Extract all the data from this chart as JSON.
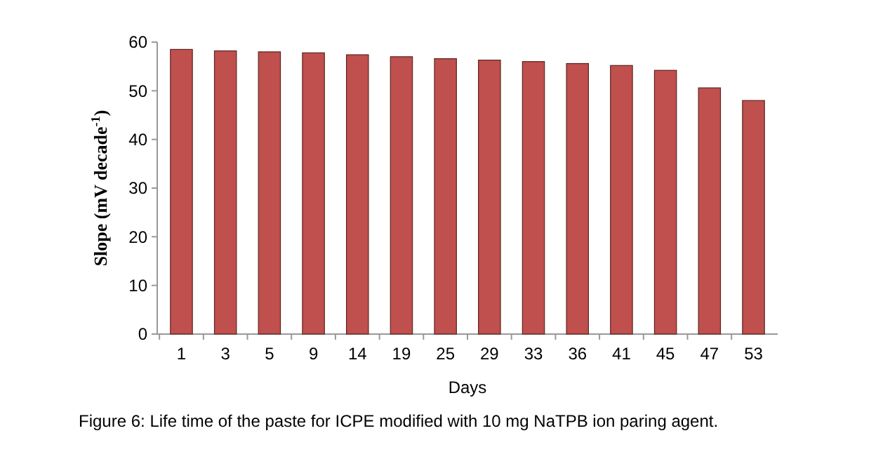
{
  "chart_data": {
    "type": "bar",
    "xlabel": "Days",
    "ylabel": "Slope (mV decade$^{-1}$)",
    "categories": [
      "1",
      "3",
      "5",
      "9",
      "14",
      "19",
      "25",
      "29",
      "33",
      "36",
      "41",
      "45",
      "47",
      "53"
    ],
    "values": [
      58.5,
      58.2,
      58.0,
      57.8,
      57.4,
      57.0,
      56.6,
      56.3,
      56.0,
      55.6,
      55.2,
      54.2,
      50.6,
      48.0
    ],
    "color": "#c0504d",
    "ylim": [
      0,
      60
    ],
    "yticks": [
      0,
      10,
      20,
      30,
      40,
      50,
      60
    ],
    "grid": false,
    "annotations": [
      "Figure 6: Life time of the paste for ICPE modified with 10 mg NaTPB ion paring agent."
    ]
  }
}
